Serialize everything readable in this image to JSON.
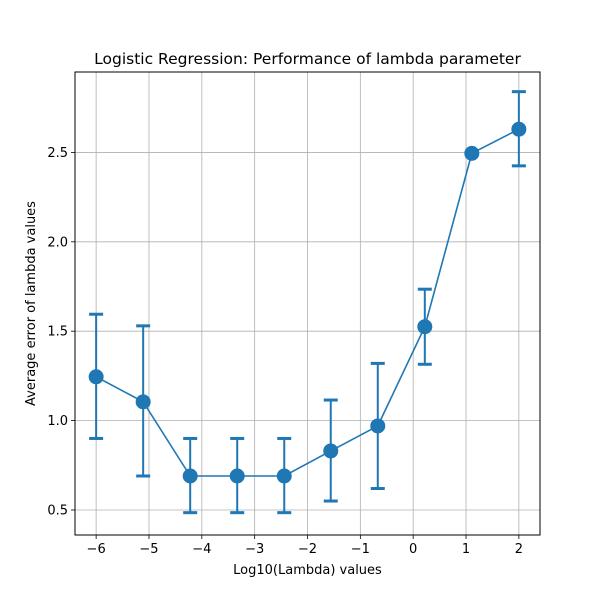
{
  "chart_data": {
    "type": "line",
    "title": "Logistic Regression: Performance of lambda parameter",
    "xlabel": "Log10(Lambda) values",
    "ylabel": "Average error of lambda values",
    "xlim": [
      -6.4,
      2.4
    ],
    "ylim": [
      0.36,
      2.95
    ],
    "x_ticks": [
      -6,
      -5,
      -4,
      -3,
      -2,
      -1,
      0,
      1,
      2
    ],
    "x_tick_labels": [
      "−6",
      "−5",
      "−4",
      "−3",
      "−2",
      "−1",
      "0",
      "1",
      "2"
    ],
    "y_ticks": [
      0.5,
      1.0,
      1.5,
      2.0,
      2.5
    ],
    "y_tick_labels": [
      "0.5",
      "1.0",
      "1.5",
      "2.0",
      "2.5"
    ],
    "grid": true,
    "series": [
      {
        "color": "#1f77b4",
        "points": [
          {
            "x": -6.0,
            "y": 1.245,
            "err_low": 0.9,
            "err_high": 1.595
          },
          {
            "x": -5.11,
            "y": 1.105,
            "err_low": 0.69,
            "err_high": 1.53
          },
          {
            "x": -4.22,
            "y": 0.69,
            "err_low": 0.485,
            "err_high": 0.9
          },
          {
            "x": -3.33,
            "y": 0.69,
            "err_low": 0.485,
            "err_high": 0.9
          },
          {
            "x": -2.44,
            "y": 0.69,
            "err_low": 0.485,
            "err_high": 0.9
          },
          {
            "x": -1.56,
            "y": 0.83,
            "err_low": 0.55,
            "err_high": 1.115
          },
          {
            "x": -0.67,
            "y": 0.97,
            "err_low": 0.62,
            "err_high": 1.32
          },
          {
            "x": 0.22,
            "y": 1.525,
            "err_low": 1.315,
            "err_high": 1.735
          },
          {
            "x": 1.11,
            "y": 2.495,
            "err_low": 2.495,
            "err_high": 2.495
          },
          {
            "x": 2.0,
            "y": 2.63,
            "err_low": 2.425,
            "err_high": 2.84
          }
        ]
      }
    ]
  }
}
